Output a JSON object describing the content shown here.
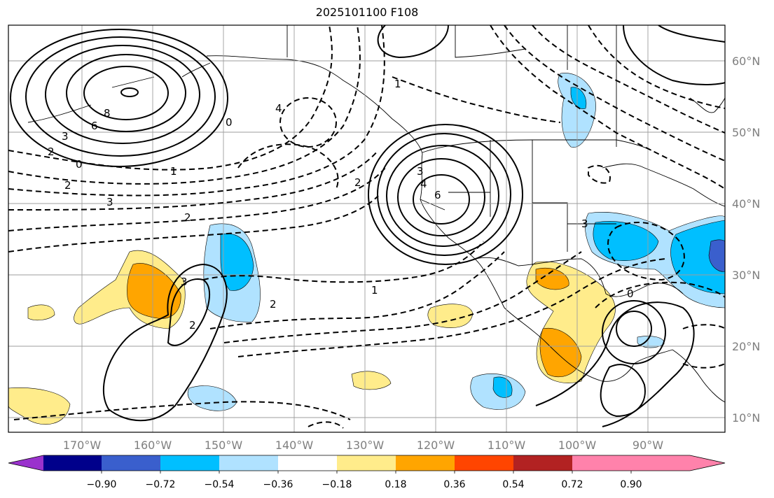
{
  "title": "2025101100 F108",
  "map": {
    "lon_ticks": [
      "170°W",
      "160°W",
      "150°W",
      "140°W",
      "130°W",
      "120°W",
      "110°W",
      "100°W",
      "90°W"
    ],
    "lat_ticks": [
      "60°N",
      "50°N",
      "40°N",
      "30°N",
      "20°N",
      "10°N"
    ],
    "contour_labels": [
      "8",
      "6",
      "3",
      "2",
      "0",
      "1",
      "2",
      "3",
      "4",
      "0",
      "1",
      "2",
      "3",
      "4",
      "6",
      "3",
      "2",
      "2",
      "1",
      "0",
      "2",
      "3"
    ]
  },
  "colorbar": {
    "ticks": [
      "−0.90",
      "−0.72",
      "−0.54",
      "−0.36",
      "−0.18",
      "0.18",
      "0.36",
      "0.54",
      "0.72",
      "0.90"
    ],
    "colors": [
      "#9a32cd",
      "#00008b",
      "#3a5fcd",
      "#00bfff",
      "#b0e2ff",
      "#ffffff",
      "#ffec8b",
      "#ffa500",
      "#ff4500",
      "#b22222",
      "#ff82ab"
    ]
  }
}
